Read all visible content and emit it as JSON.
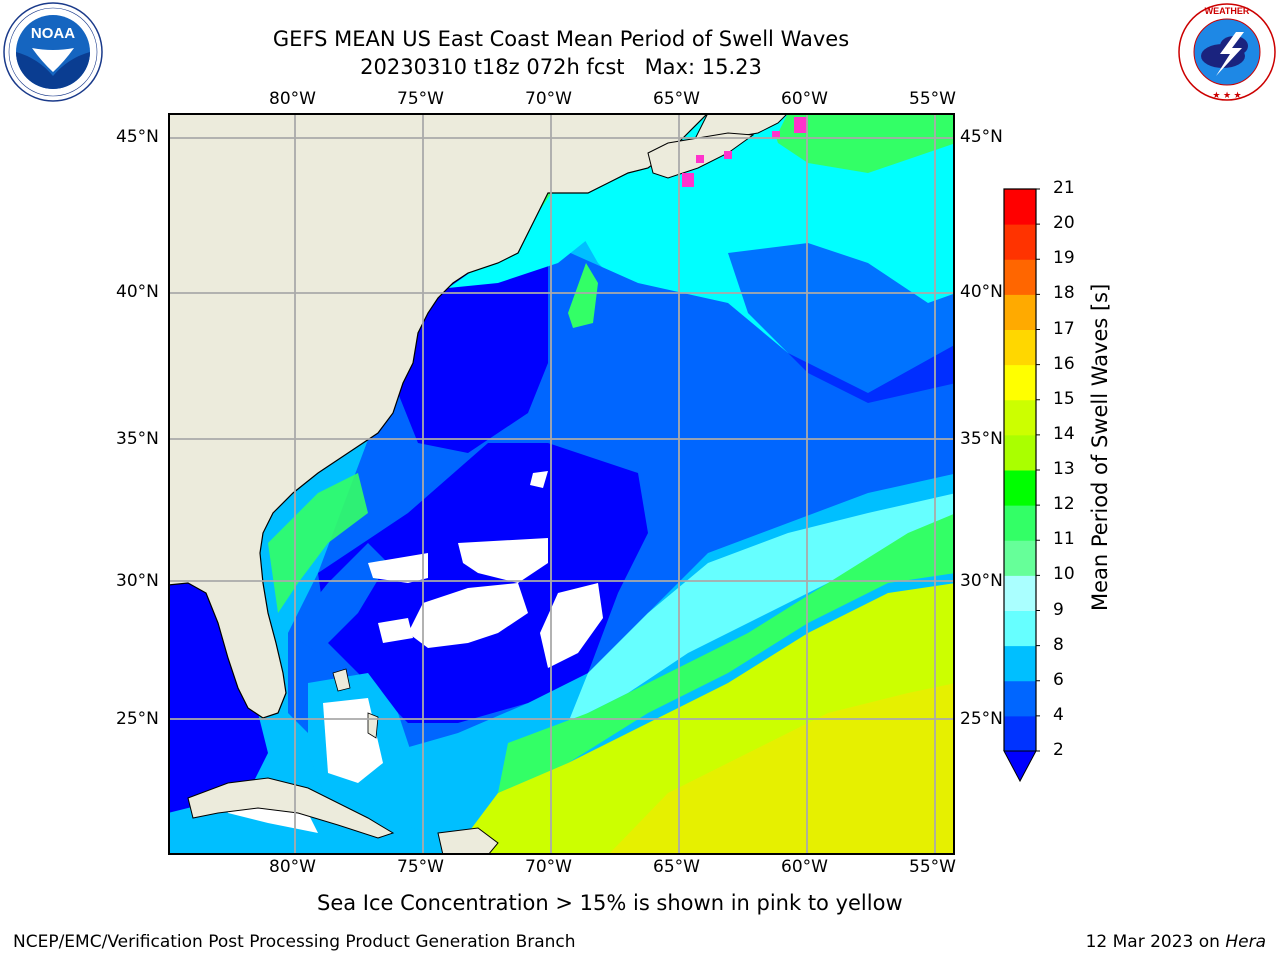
{
  "header": {
    "title_line1": "GEFS MEAN US East Coast Mean Period of Swell Waves",
    "title_line2": "20230310 t18z 072h fcst   Max: 15.23"
  },
  "logos": {
    "left": {
      "name": "NOAA",
      "ring_text": "NATIONAL OCEANIC AND ATMOSPHERIC ADMINISTRATION · U.S. DEPARTMENT OF COMMERCE"
    },
    "right": {
      "name": "NATIONAL WEATHER SERVICE"
    }
  },
  "map": {
    "lon_labels": [
      "80°W",
      "75°W",
      "70°W",
      "65°W",
      "60°W",
      "55°W"
    ],
    "lat_labels": [
      "45°N",
      "40°N",
      "35°N",
      "30°N",
      "25°N"
    ],
    "colors": {
      "land": "#ecebdc",
      "grid": "#aaaaaa",
      "coast": "#000000",
      "no_data": "#ffffff",
      "sea_ice": "#ff33cc"
    }
  },
  "colorbar": {
    "label": "Mean Period of Swell Waves [s]",
    "ticks": [
      "2",
      "4",
      "6",
      "8",
      "9",
      "10",
      "11",
      "12",
      "13",
      "14",
      "15",
      "16",
      "17",
      "18",
      "19",
      "20",
      "21"
    ],
    "colors": [
      "#0033ff",
      "#0066ff",
      "#00bfff",
      "#00ffff",
      "#66ffff",
      "#aaffff",
      "#66ff99",
      "#33ff66",
      "#00ff00",
      "#66ff00",
      "#aaff00",
      "#ccff00",
      "#ffff00",
      "#ffd700",
      "#ffaa00",
      "#ff8800",
      "#ff6600",
      "#ff3300",
      "#ff0000"
    ],
    "under_color": "#0000ff"
  },
  "caption": "Sea Ice Concentration > 15% is shown in pink to yellow",
  "footer": {
    "left": "NCEP/EMC/Verification Post Processing Product Generation Branch",
    "date": "12 Mar 2023 on ",
    "machine": "Hera"
  }
}
